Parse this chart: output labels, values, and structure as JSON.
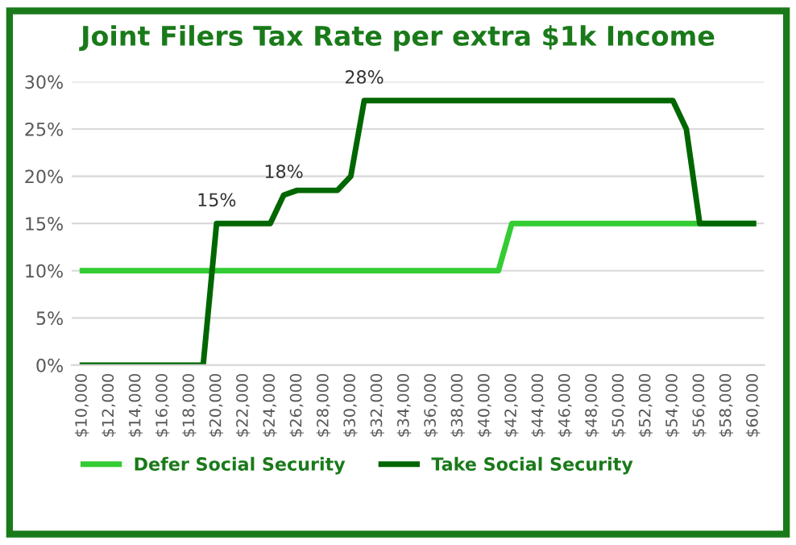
{
  "chart_data": {
    "type": "line",
    "title": "Joint Filers Tax Rate per extra $1k Income",
    "categories": [
      "$10,000",
      null,
      "$12,000",
      null,
      "$14,000",
      null,
      "$16,000",
      null,
      "$18,000",
      null,
      "$20,000",
      null,
      "$22,000",
      null,
      "$24,000",
      null,
      "$26,000",
      null,
      "$28,000",
      null,
      "$30,000",
      null,
      "$32,000",
      null,
      "$34,000",
      null,
      "$36,000",
      null,
      "$38,000",
      null,
      "$40,000",
      null,
      "$42,000",
      null,
      "$44,000",
      null,
      "$46,000",
      null,
      "$48,000",
      null,
      "$50,000",
      null,
      "$52,000",
      null,
      "$54,000",
      null,
      "$56,000",
      null,
      "$58,000",
      null,
      "$60,000"
    ],
    "series": [
      {
        "name": "Defer Social Security",
        "color": "#33cc33",
        "values": [
          10,
          10,
          10,
          10,
          10,
          10,
          10,
          10,
          10,
          10,
          10,
          10,
          10,
          10,
          10,
          10,
          10,
          10,
          10,
          10,
          10,
          10,
          10,
          10,
          10,
          10,
          10,
          10,
          10,
          10,
          10,
          10,
          15,
          15,
          15,
          15,
          15,
          15,
          15,
          15,
          15,
          15,
          15,
          15,
          15,
          15,
          15,
          15,
          15,
          15,
          15
        ]
      },
      {
        "name": "Take Social Security",
        "color": "#006600",
        "values": [
          0,
          0,
          0,
          0,
          0,
          0,
          0,
          0,
          0,
          0,
          15,
          15,
          15,
          15,
          15,
          18,
          18.5,
          18.5,
          18.5,
          18.5,
          20,
          28,
          28,
          28,
          28,
          28,
          28,
          28,
          28,
          28,
          28,
          28,
          28,
          28,
          28,
          28,
          28,
          28,
          28,
          28,
          28,
          28,
          28,
          28,
          28,
          25,
          15,
          15,
          15,
          15,
          15
        ],
        "value_labels": [
          null,
          null,
          null,
          null,
          null,
          null,
          null,
          null,
          null,
          null,
          "15%",
          null,
          null,
          null,
          null,
          "18%",
          null,
          null,
          null,
          null,
          null,
          "28%",
          null,
          null,
          null,
          null,
          null,
          null,
          null,
          null,
          null,
          null,
          null,
          null,
          null,
          null,
          null,
          null,
          null,
          null,
          null,
          null,
          null,
          null,
          null,
          null,
          null,
          null,
          null,
          null,
          null
        ]
      }
    ],
    "ylim": [
      0,
      30
    ],
    "yticks": [
      {
        "value": 0,
        "label": "0%"
      },
      {
        "value": 5,
        "label": "5%"
      },
      {
        "value": 10,
        "label": "10%"
      },
      {
        "value": 15,
        "label": "15%"
      },
      {
        "value": 20,
        "label": "20%"
      },
      {
        "value": 25,
        "label": "25%"
      },
      {
        "value": 30,
        "label": "30%"
      }
    ],
    "grid": "y",
    "legend": "bottom",
    "marker": "none",
    "line_style": "solid"
  }
}
